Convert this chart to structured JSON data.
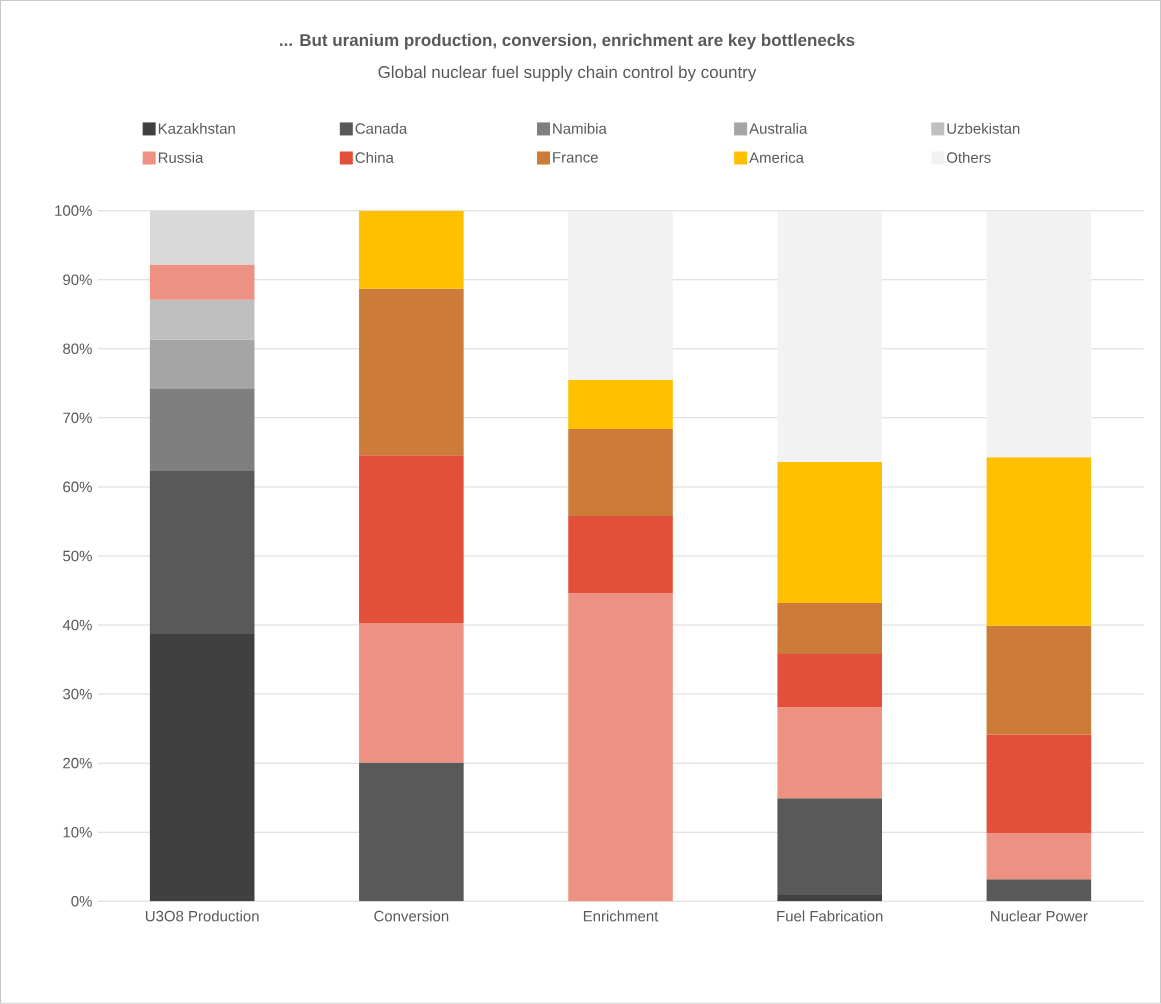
{
  "chart_data": {
    "type": "bar",
    "stacked": true,
    "title": "**... But uranium production, conversion, enrichment are key bottlenecks**",
    "subtitle": "Global nuclear fuel supply chain control by country",
    "categories": [
      "U3O8 Production",
      "Conversion",
      "Enrichment",
      "Fuel Fabrication",
      "Nuclear Power"
    ],
    "series": [
      {
        "name": "Kazakhstan",
        "color": "#404040",
        "values": [
          38.7,
          0,
          0,
          0.9,
          0
        ]
      },
      {
        "name": "Canada",
        "color": "#595959",
        "values": [
          23.6,
          20.1,
          0,
          14.0,
          3.2
        ]
      },
      {
        "name": "Namibia",
        "color": "#7f7f7f",
        "values": [
          12.0,
          0,
          0,
          0,
          0
        ]
      },
      {
        "name": "Australia",
        "color": "#a5a5a5",
        "values": [
          7.0,
          0,
          0,
          0,
          0
        ]
      },
      {
        "name": "Uzbekistan",
        "color": "#bfbfbf",
        "values": [
          5.8,
          0,
          0,
          0,
          0
        ]
      },
      {
        "name": "Russia",
        "color": "#ed9183",
        "values": [
          5.1,
          20.2,
          44.6,
          13.2,
          6.7
        ]
      },
      {
        "name": "China",
        "color": "#e24f3a",
        "values": [
          0,
          24.3,
          11.2,
          7.7,
          14.2
        ]
      },
      {
        "name": "France",
        "color": "#cc7b38",
        "values": [
          0,
          24.1,
          12.6,
          7.4,
          15.8
        ]
      },
      {
        "name": "America",
        "color": "#ffc000",
        "values": [
          0,
          11.3,
          7.1,
          20.4,
          24.4
        ]
      },
      {
        "name": "Others",
        "color": "#f2f2f2",
        "colors": [
          "#d9d9d9",
          "#f2f2f2",
          "#f2f2f2",
          "#f2f2f2",
          "#f2f2f2"
        ],
        "values": [
          7.8,
          0,
          24.5,
          36.4,
          35.7
        ]
      }
    ],
    "ylim": [
      0,
      100
    ],
    "yticks": [
      {
        "value": 0,
        "label": "0%"
      },
      {
        "value": 10,
        "label": "10%"
      },
      {
        "value": 20,
        "label": "20%"
      },
      {
        "value": 30,
        "label": "30%"
      },
      {
        "value": 40,
        "label": "40%"
      },
      {
        "value": 50,
        "label": "50%"
      },
      {
        "value": 60,
        "label": "60%"
      },
      {
        "value": 70,
        "label": "70%"
      },
      {
        "value": 80,
        "label": "80%"
      },
      {
        "value": 90,
        "label": "90%"
      },
      {
        "value": 100,
        "label": "100%"
      }
    ],
    "grid": "y",
    "legend": "top"
  }
}
